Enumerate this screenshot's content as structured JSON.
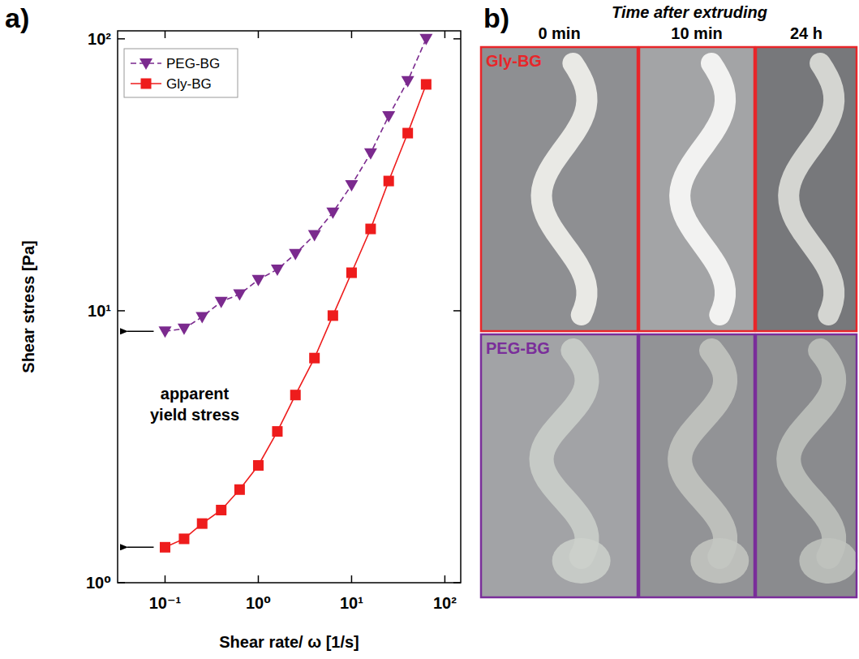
{
  "figure": {
    "panel_labels": [
      "a)",
      "b)"
    ]
  },
  "chart_data": {
    "type": "line",
    "x_label": "Shear rate/ ω [1/s]",
    "y_label": "Shear stress [Pa]",
    "annotations": [
      {
        "text": "apparent yield stress"
      }
    ],
    "x": [
      0.1,
      0.16,
      0.25,
      0.4,
      0.63,
      1,
      1.6,
      2.5,
      4,
      6.3,
      10,
      16,
      25,
      40,
      63
    ],
    "series": [
      {
        "name": "PEG-BG",
        "color": "#7b2a8e",
        "marker": "triangle-down",
        "line_style": "dashed",
        "values": [
          8.4,
          8.6,
          9.5,
          10.8,
          11.5,
          13,
          14.2,
          16.2,
          19,
          23,
          29,
          38,
          52,
          70,
          100
        ]
      },
      {
        "name": "Gly-BG",
        "color": "#ee1c1c",
        "marker": "square",
        "line_style": "solid",
        "values": [
          1.35,
          1.45,
          1.65,
          1.85,
          2.2,
          2.7,
          3.6,
          4.9,
          6.7,
          9.6,
          13.8,
          20,
          30,
          45,
          68
        ]
      }
    ],
    "log": true,
    "xlim": [
      0.031,
      148
    ],
    "ylim": [
      1,
      107
    ],
    "xticks": [
      {
        "value": 0.1,
        "label": "10⁻¹"
      },
      {
        "value": 1,
        "label": "10⁰"
      },
      {
        "value": 10,
        "label": "10¹"
      },
      {
        "value": 100,
        "label": "10²"
      }
    ],
    "yticks": [
      {
        "value": 1,
        "label": "10⁰"
      },
      {
        "value": 10,
        "label": "10¹"
      },
      {
        "value": 100,
        "label": "10²"
      }
    ],
    "grid": false,
    "legend": "top-left"
  },
  "photo_panel": {
    "heading": "Time after extruding",
    "columns": [
      "0 min",
      "10 min",
      "24 h"
    ],
    "rows": [
      {
        "label": "Gly-BG",
        "color": "#e8262a"
      },
      {
        "label": "PEG-BG",
        "color": "#7a2e9a"
      }
    ]
  }
}
